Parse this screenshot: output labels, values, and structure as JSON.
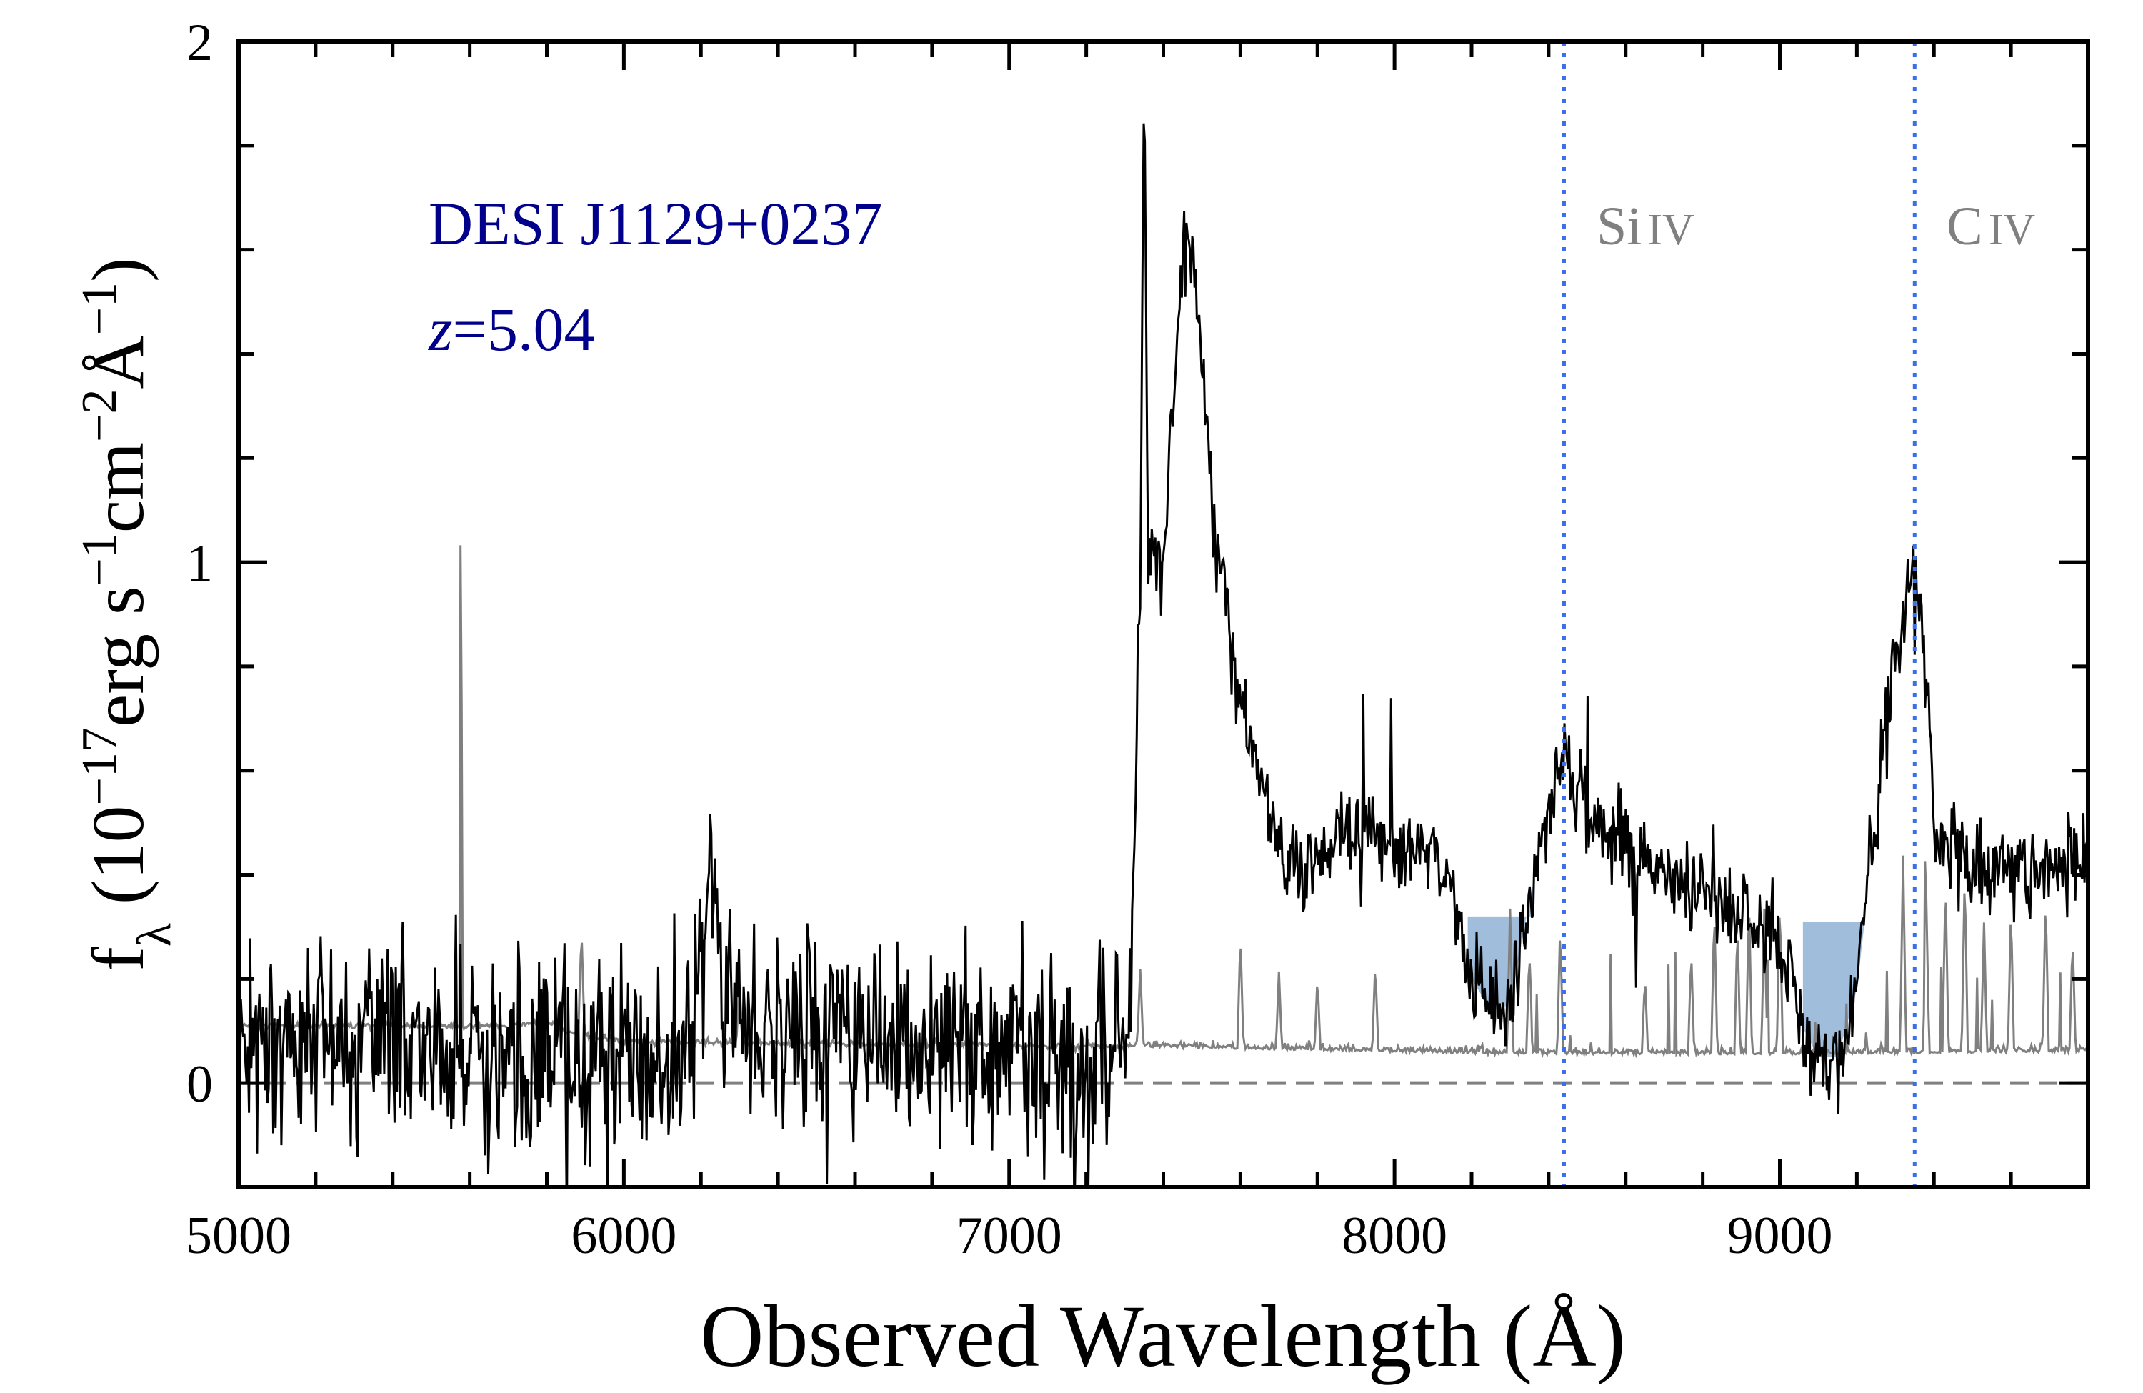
{
  "chart_data": {
    "type": "line",
    "xlabel": "Observed Wavelength (Å)",
    "ylabel": {
      "f": "f",
      "sub": "λ",
      "open": " (10",
      "exp1": "−17",
      "erg": "erg s",
      "exp2": "−1",
      "cm": "cm",
      "exp3": "−2",
      "ang": "Å",
      "exp4": "−1",
      "close": ")"
    },
    "xlim": [
      5000,
      9800
    ],
    "ylim": [
      -0.2,
      2
    ],
    "xticks": [
      5000,
      6000,
      7000,
      8000,
      9000
    ],
    "xtick_labels": [
      "5000",
      "6000",
      "7000",
      "8000",
      "9000"
    ],
    "xminor_step": 200,
    "yticks": [
      0,
      1,
      2
    ],
    "ytick_labels": [
      "0",
      "1",
      "2"
    ],
    "yminor_step": 0.2,
    "annotations": {
      "object": "DESI J1129+0237",
      "redshift_var": "z",
      "redshift_val": "=5.04",
      "siiv": {
        "el": "Si",
        "ion": "IV",
        "x": 8440
      },
      "civ": {
        "el": "C",
        "ion": "IV",
        "x": 9350
      }
    },
    "colors": {
      "flux": "#000000",
      "error": "#808080",
      "zero": "#808080",
      "lines": "#3b6fe8",
      "absorption": "#8fb2d6",
      "title": "#00008b",
      "label": "#808080"
    },
    "series": [
      {
        "name": "flux",
        "anchors": [
          [
            5000,
            0.08
          ],
          [
            5500,
            0.06
          ],
          [
            5800,
            0.04
          ],
          [
            6000,
            0.03
          ],
          [
            6150,
            0.05
          ],
          [
            6200,
            0.25
          ],
          [
            6230,
            0.45
          ],
          [
            6260,
            0.2
          ],
          [
            6300,
            0.1
          ],
          [
            6500,
            0.12
          ],
          [
            6800,
            0.08
          ],
          [
            7000,
            0.06
          ],
          [
            7300,
            0.05
          ],
          [
            7320,
            0.3
          ],
          [
            7340,
            1.0
          ],
          [
            7350,
            2.0
          ],
          [
            7360,
            1.0
          ],
          [
            7400,
            1.0
          ],
          [
            7440,
            1.5
          ],
          [
            7470,
            1.62
          ],
          [
            7500,
            1.4
          ],
          [
            7530,
            1.1
          ],
          [
            7560,
            0.95
          ],
          [
            7600,
            0.72
          ],
          [
            7650,
            0.6
          ],
          [
            7700,
            0.45
          ],
          [
            7750,
            0.4
          ],
          [
            7850,
            0.45
          ],
          [
            7900,
            0.5
          ],
          [
            7950,
            0.45
          ],
          [
            8000,
            0.45
          ],
          [
            8100,
            0.46
          ],
          [
            8150,
            0.36
          ],
          [
            8200,
            0.2
          ],
          [
            8250,
            0.14
          ],
          [
            8300,
            0.15
          ],
          [
            8350,
            0.35
          ],
          [
            8400,
            0.52
          ],
          [
            8440,
            0.66
          ],
          [
            8470,
            0.55
          ],
          [
            8550,
            0.47
          ],
          [
            8650,
            0.42
          ],
          [
            8750,
            0.38
          ],
          [
            8850,
            0.34
          ],
          [
            8950,
            0.32
          ],
          [
            9000,
            0.26
          ],
          [
            9050,
            0.12
          ],
          [
            9100,
            0.05
          ],
          [
            9150,
            0.05
          ],
          [
            9200,
            0.18
          ],
          [
            9250,
            0.5
          ],
          [
            9300,
            0.82
          ],
          [
            9340,
            0.98
          ],
          [
            9370,
            0.85
          ],
          [
            9400,
            0.5
          ],
          [
            9500,
            0.42
          ],
          [
            9800,
            0.42
          ]
        ],
        "noise_sigma": [
          [
            5000,
            0.11
          ],
          [
            7300,
            0.1
          ],
          [
            7350,
            0.04
          ],
          [
            9800,
            0.05
          ]
        ]
      },
      {
        "name": "error",
        "anchors": [
          [
            5000,
            0.11
          ],
          [
            5700,
            0.11
          ],
          [
            5800,
            0.12
          ],
          [
            5850,
            0.1
          ],
          [
            6000,
            0.08
          ],
          [
            7300,
            0.07
          ],
          [
            8000,
            0.06
          ],
          [
            8300,
            0.055
          ],
          [
            9000,
            0.055
          ],
          [
            9800,
            0.06
          ]
        ],
        "spikes": [
          [
            5577,
            1.23
          ],
          [
            5890,
            0.2
          ],
          [
            6300,
            0.12
          ],
          [
            7340,
            0.15
          ],
          [
            7600,
            0.22
          ],
          [
            7700,
            0.15
          ],
          [
            7800,
            0.14
          ],
          [
            7950,
            0.17
          ],
          [
            8300,
            0.28
          ],
          [
            8350,
            0.2
          ],
          [
            8430,
            0.25
          ],
          [
            8650,
            0.15
          ],
          [
            8770,
            0.2
          ],
          [
            8830,
            0.28
          ],
          [
            8890,
            0.25
          ],
          [
            8920,
            0.3
          ],
          [
            8960,
            0.28
          ],
          [
            9000,
            0.3
          ],
          [
            9320,
            0.38
          ],
          [
            9380,
            0.3
          ],
          [
            9430,
            0.33
          ],
          [
            9480,
            0.35
          ],
          [
            9530,
            0.25
          ],
          [
            9600,
            0.28
          ],
          [
            9690,
            0.3
          ],
          [
            9760,
            0.22
          ]
        ]
      }
    ],
    "absorption_regions": [
      {
        "x0": 8190,
        "x1": 8360,
        "top": 0.32
      },
      {
        "x0": 9060,
        "x1": 9220,
        "top": 0.31
      }
    ],
    "zero_line": 0,
    "grid": false
  }
}
